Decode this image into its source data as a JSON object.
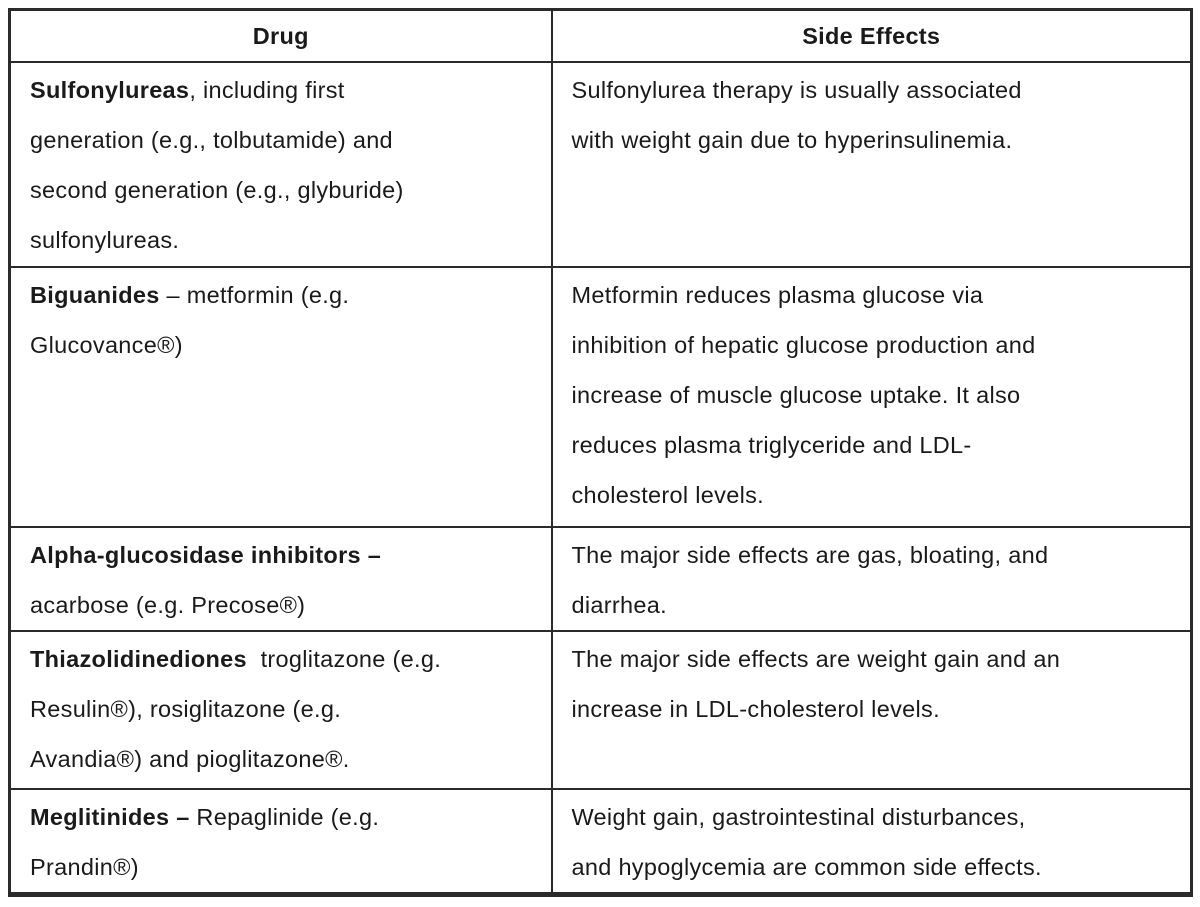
{
  "page": {
    "background": "#ffffff"
  },
  "table": {
    "title": "diabetes-drug-side-effects-table",
    "colors": {
      "border": "#2b2b2b",
      "text": "#1a1a1a",
      "background": "#ffffff"
    },
    "columns": [
      {
        "label": "Drug"
      },
      {
        "label": "Side Effects"
      }
    ],
    "rows": [
      {
        "drug": {
          "text": "Sulfonylureas, including first generation (e.g., tolbutamide) and second generation (e.g., glyburide) sulfonylureas.",
          "lines": [
            [
              {
                "b": true,
                "t": "Sulfonylureas"
              },
              {
                "b": false,
                "t": ", including first"
              }
            ],
            [
              {
                "b": false,
                "t": "generation (e.g., tolbutamide) and"
              }
            ],
            [
              {
                "b": false,
                "t": "second generation (e.g., glyburide)"
              }
            ],
            [
              {
                "b": false,
                "t": "sulfonylureas."
              }
            ]
          ]
        },
        "side_effects": {
          "text": "Sulfonylurea therapy is usually associated with weight gain due to hyperinsulinemia.",
          "lines": [
            [
              {
                "b": false,
                "t": "Sulfonylurea therapy is usually associated"
              }
            ],
            [
              {
                "b": false,
                "t": "with weight gain due to hyperinsulinemia."
              }
            ]
          ]
        }
      },
      {
        "drug": {
          "text": "Biguanides – metformin (e.g. Glucovance®)",
          "lines": [
            [
              {
                "b": true,
                "t": "Biguanides"
              },
              {
                "b": false,
                "t": " – metformin (e.g."
              }
            ],
            [
              {
                "b": false,
                "t": "Glucovance®)"
              }
            ]
          ]
        },
        "side_effects": {
          "text": "Metformin reduces plasma glucose via inhibition of hepatic glucose production and increase of muscle glucose uptake. It also reduces plasma triglyceride and LDL-cholesterol levels.",
          "lines": [
            [
              {
                "b": false,
                "t": "Metformin reduces plasma glucose via"
              }
            ],
            [
              {
                "b": false,
                "t": "inhibition of hepatic glucose production and"
              }
            ],
            [
              {
                "b": false,
                "t": "increase of muscle glucose uptake. It also"
              }
            ],
            [
              {
                "b": false,
                "t": "reduces plasma triglyceride and LDL-"
              }
            ],
            [
              {
                "b": false,
                "t": "cholesterol levels."
              }
            ]
          ]
        }
      },
      {
        "drug": {
          "text": "Alpha-glucosidase inhibitors – acarbose (e.g. Precose®)",
          "lines": [
            [
              {
                "b": true,
                "t": "Alpha-glucosidase inhibitors –"
              }
            ],
            [
              {
                "b": false,
                "t": "acarbose (e.g. Precose®)"
              }
            ]
          ]
        },
        "side_effects": {
          "text": "The major side effects are gas, bloating, and diarrhea.",
          "lines": [
            [
              {
                "b": false,
                "t": "The major side effects are gas, bloating, and"
              }
            ],
            [
              {
                "b": false,
                "t": "diarrhea."
              }
            ]
          ]
        }
      },
      {
        "drug": {
          "text": "Thiazolidinediones  troglitazone (e.g. Resulin®), rosiglitazone (e.g. Avandia®) and pioglitazone®.",
          "lines": [
            [
              {
                "b": true,
                "t": "Thiazolidinediones"
              },
              {
                "b": false,
                "t": "  troglitazone (e.g."
              }
            ],
            [
              {
                "b": false,
                "t": "Resulin®), rosiglitazone (e.g."
              }
            ],
            [
              {
                "b": false,
                "t": "Avandia®) and pioglitazone®."
              }
            ]
          ]
        },
        "side_effects": {
          "text": "The major side effects are weight gain and an increase in LDL-cholesterol levels.",
          "lines": [
            [
              {
                "b": false,
                "t": "The major side effects are weight gain and an"
              }
            ],
            [
              {
                "b": false,
                "t": "increase in LDL-cholesterol levels."
              }
            ]
          ]
        }
      },
      {
        "drug": {
          "text": "Meglitinides – Repaglinide (e.g. Prandin®)",
          "lines": [
            [
              {
                "b": true,
                "t": "Meglitinides –"
              },
              {
                "b": false,
                "t": " Repaglinide (e.g."
              }
            ],
            [
              {
                "b": false,
                "t": "Prandin®)"
              }
            ]
          ]
        },
        "side_effects": {
          "text": "Weight gain, gastrointestinal disturbances, and hypoglycemia are common side effects.",
          "lines": [
            [
              {
                "b": false,
                "t": "Weight gain, gastrointestinal disturbances,"
              }
            ],
            [
              {
                "b": false,
                "t": "and hypoglycemia are common side effects."
              }
            ]
          ]
        }
      }
    ]
  }
}
